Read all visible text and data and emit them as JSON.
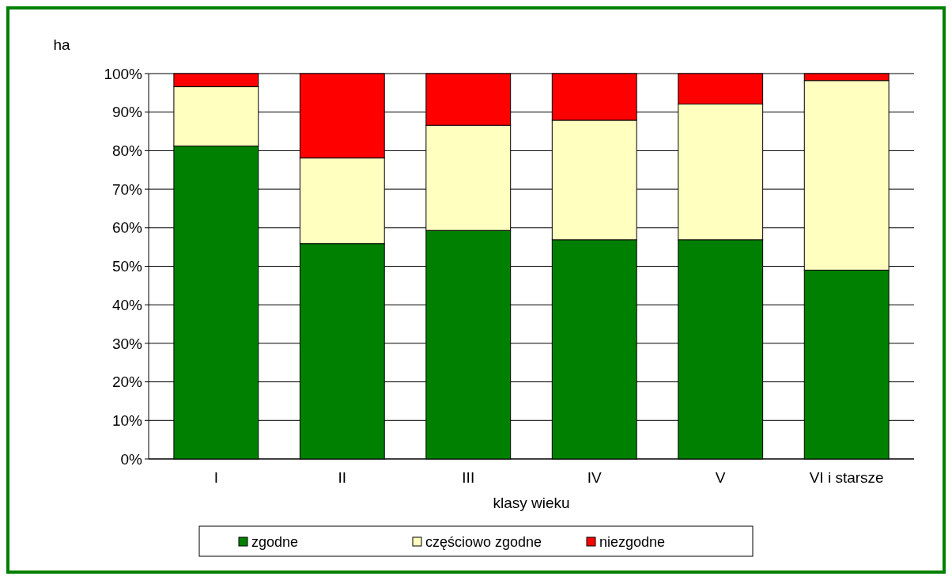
{
  "chart_data": {
    "type": "bar",
    "stacked": true,
    "ylabel": "ha",
    "xlabel": "klasy wieku",
    "categories": [
      "I",
      "II",
      "III",
      "IV",
      "V",
      "VI i starsze"
    ],
    "series": [
      {
        "name": "zgodne",
        "color": "#008000",
        "values": [
          81.2,
          55.9,
          59.3,
          56.9,
          56.9,
          49
        ]
      },
      {
        "name": "częściowo zgodne",
        "color": "#ffffc0",
        "values": [
          15.4,
          22.2,
          27.3,
          31,
          35.2,
          49.2
        ]
      },
      {
        "name": "niezgodne",
        "color": "#ff0000",
        "values": [
          3.4,
          21.9,
          13.4,
          12.1,
          7.9,
          1.8
        ]
      }
    ],
    "ylim": [
      0,
      100
    ],
    "yticks": [
      {
        "value": 0,
        "label": "0%"
      },
      {
        "value": 10,
        "label": "10%"
      },
      {
        "value": 20,
        "label": "20%"
      },
      {
        "value": 30,
        "label": "30%"
      },
      {
        "value": 40,
        "label": "40%"
      },
      {
        "value": 50,
        "label": "50%"
      },
      {
        "value": 60,
        "label": "60%"
      },
      {
        "value": 70,
        "label": "70%"
      },
      {
        "value": 80,
        "label": "80%"
      },
      {
        "value": 90,
        "label": "90%"
      },
      {
        "value": 100,
        "label": "100%"
      }
    ],
    "grid": "y",
    "legend": "bottom"
  }
}
